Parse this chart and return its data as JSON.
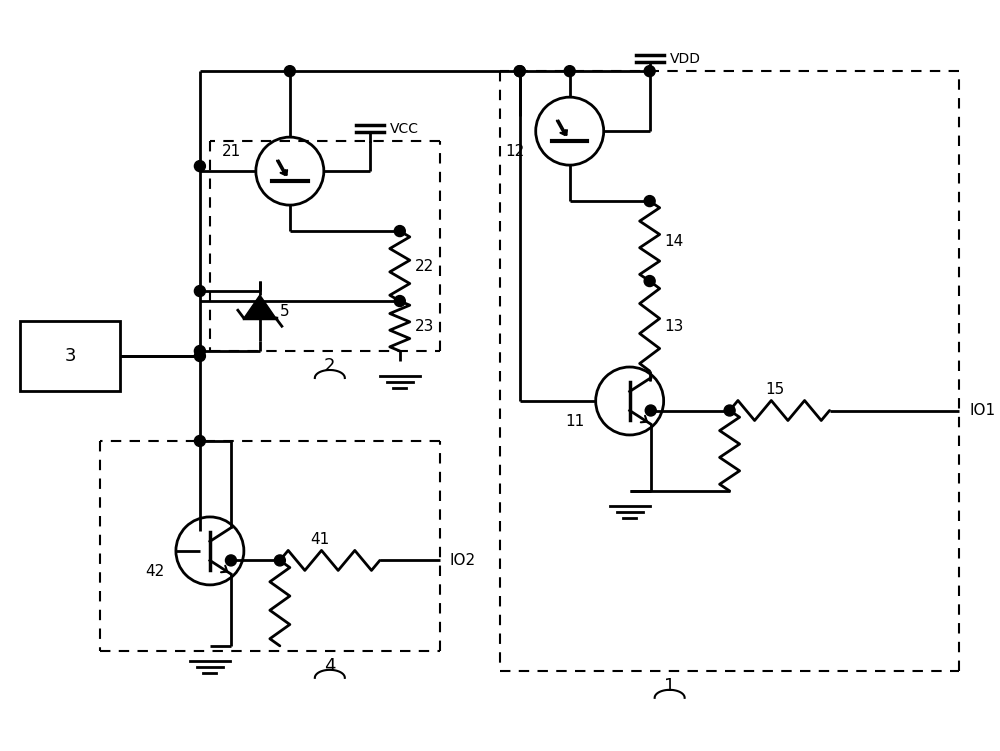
{
  "figsize": [
    10.0,
    7.51
  ],
  "dpi": 100,
  "xlim": [
    0,
    100
  ],
  "ylim": [
    0,
    75.1
  ]
}
